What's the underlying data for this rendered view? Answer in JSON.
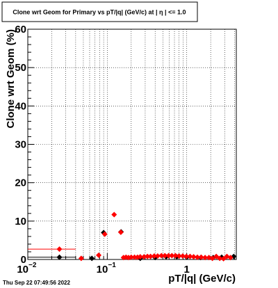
{
  "timestamp": "Thu Sep 22 07:49:56 2022",
  "chart_data": {
    "type": "scatter",
    "title": "Clone wrt Geom for Primary vs pT/|q| (GeV/c) at |  η  | <= 1.0",
    "xlabel": "pT/|q| (GeV/c)",
    "ylabel": "Clone wrt Geom (%)",
    "xscale": "log",
    "xlim": [
      0.01,
      4.2
    ],
    "ylim": [
      0,
      60
    ],
    "grid": true,
    "x_tick_labels": [
      {
        "value": 0.01,
        "base": "10",
        "exp": "−2"
      },
      {
        "value": 0.1,
        "base": "10",
        "exp": "−1"
      },
      {
        "value": 1,
        "base": "1",
        "exp": ""
      }
    ],
    "y_ticks": [
      {
        "value": 0,
        "label": "0"
      },
      {
        "value": 10,
        "label": "10"
      },
      {
        "value": 20,
        "label": "20"
      },
      {
        "value": 30,
        "label": "30"
      },
      {
        "value": 40,
        "label": "40"
      },
      {
        "value": 50,
        "label": "50"
      },
      {
        "value": 60,
        "label": "60"
      }
    ],
    "colors": {
      "series_black": "#000000",
      "series_red": "#ff0000",
      "grid": "#000000"
    },
    "series": [
      {
        "color": "#000000",
        "points": [
          {
            "x": 0.025,
            "y": 0.6,
            "xlo": 0.01,
            "xhi": 0.04
          },
          {
            "x": 0.064,
            "y": 0.3
          },
          {
            "x": 0.09,
            "y": 7.0
          },
          {
            "x": 0.149,
            "y": 7.2
          },
          {
            "x": 0.26,
            "y": 0.3
          },
          {
            "x": 0.4,
            "y": 0.5
          },
          {
            "x": 0.55,
            "y": 0.7
          },
          {
            "x": 0.75,
            "y": 0.7
          },
          {
            "x": 1.0,
            "y": 0.6
          },
          {
            "x": 1.5,
            "y": 0.5
          },
          {
            "x": 2.15,
            "y": 0.5
          },
          {
            "x": 2.75,
            "y": 0.6
          },
          {
            "x": 3.9,
            "y": 0.8
          }
        ]
      },
      {
        "color": "#ff0000",
        "points": [
          {
            "x": 0.025,
            "y": 2.7,
            "xlo": 0.01,
            "xhi": 0.04
          },
          {
            "x": 0.047,
            "y": 0.3
          },
          {
            "x": 0.078,
            "y": 1.1
          },
          {
            "x": 0.093,
            "y": 6.6
          },
          {
            "x": 0.122,
            "y": 11.7
          },
          {
            "x": 0.148,
            "y": 7.1
          },
          {
            "x": 0.16,
            "y": 0.5
          },
          {
            "x": 0.172,
            "y": 0.6
          },
          {
            "x": 0.185,
            "y": 0.5
          },
          {
            "x": 0.2,
            "y": 0.6
          },
          {
            "x": 0.22,
            "y": 0.6
          },
          {
            "x": 0.24,
            "y": 0.6
          },
          {
            "x": 0.26,
            "y": 0.7
          },
          {
            "x": 0.29,
            "y": 0.7
          },
          {
            "x": 0.32,
            "y": 0.8
          },
          {
            "x": 0.35,
            "y": 0.8
          },
          {
            "x": 0.39,
            "y": 0.9
          },
          {
            "x": 0.43,
            "y": 0.9
          },
          {
            "x": 0.48,
            "y": 1.0
          },
          {
            "x": 0.53,
            "y": 1.0
          },
          {
            "x": 0.59,
            "y": 1.0
          },
          {
            "x": 0.65,
            "y": 1.0
          },
          {
            "x": 0.72,
            "y": 1.0
          },
          {
            "x": 0.8,
            "y": 0.9
          },
          {
            "x": 0.89,
            "y": 0.9
          },
          {
            "x": 0.99,
            "y": 0.8
          },
          {
            "x": 1.1,
            "y": 0.8
          },
          {
            "x": 1.22,
            "y": 0.7
          },
          {
            "x": 1.36,
            "y": 0.6
          },
          {
            "x": 1.52,
            "y": 0.6
          },
          {
            "x": 1.7,
            "y": 0.5
          },
          {
            "x": 1.9,
            "y": 0.5
          },
          {
            "x": 2.1,
            "y": 0.3
          },
          {
            "x": 2.35,
            "y": 0.8
          },
          {
            "x": 2.6,
            "y": 0.3
          },
          {
            "x": 2.9,
            "y": 0.2
          },
          {
            "x": 3.2,
            "y": 0.8
          },
          {
            "x": 3.55,
            "y": 0.5
          }
        ]
      }
    ]
  }
}
